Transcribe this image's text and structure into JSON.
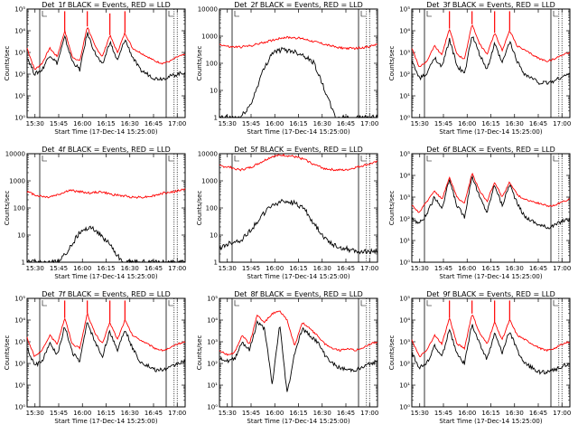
{
  "chart_data": [
    {
      "type": "line",
      "panel": "det-1f",
      "title": "Det_1f BLACK = Events, RED = LLD",
      "ylabel": "Counts/sec",
      "xlabel": "Start Time (17-Dec-14 15:25:00)",
      "xlabels": [
        "15:30",
        "15:45",
        "16:00",
        "16:15",
        "16:30",
        "16:45",
        "17:00"
      ],
      "yscale": "log",
      "ylim_exp": [
        0,
        5
      ],
      "ytick_style": "exp",
      "ytick_labels": [
        "10⁰",
        "10¹",
        "10²",
        "10³",
        "10⁴",
        "10⁵"
      ],
      "series": [
        {
          "color": "#ff0000",
          "values": [
            3.2,
            2.2,
            2.5,
            3.2,
            2.8,
            4.0,
            2.8,
            2.6,
            4.2,
            3.3,
            2.8,
            3.8,
            3.0,
            3.9,
            3.2,
            3.0,
            2.8,
            2.6,
            2.5,
            2.6,
            2.8,
            2.9
          ]
        },
        {
          "color": "#000000",
          "values": [
            2.8,
            2.0,
            2.2,
            2.9,
            2.5,
            3.7,
            2.6,
            2.2,
            3.9,
            3.0,
            2.4,
            3.5,
            2.6,
            3.6,
            2.8,
            2.2,
            2.0,
            1.8,
            1.8,
            1.9,
            2.0,
            2.1
          ]
        }
      ],
      "spikes_red": [
        5,
        8,
        11,
        13
      ],
      "vlines_solid": [
        0.08,
        0.88
      ],
      "vlines_dotted": [
        0.93,
        0.95
      ]
    },
    {
      "type": "line",
      "panel": "det-2f",
      "title": "Det_2f BLACK = Events, RED = LLD",
      "ylabel": "Counts/sec",
      "xlabel": "Start Time (17-Dec-14 15:25:00)",
      "xlabels": [
        "15:30",
        "15:45",
        "16:00",
        "16:15",
        "16:30",
        "16:45",
        "17:00"
      ],
      "yscale": "log",
      "ylim_exp": [
        0,
        4
      ],
      "ytick_style": "num",
      "ytick_labels": [
        "1",
        "10",
        "100",
        "1000",
        "10000"
      ],
      "series": [
        {
          "color": "#ff0000",
          "values": [
            2.7,
            2.6,
            2.6,
            2.65,
            2.75,
            2.85,
            2.95,
            2.95,
            2.9,
            2.8,
            2.7,
            2.6,
            2.55,
            2.55,
            2.6,
            2.7
          ]
        },
        {
          "color": "#000000",
          "values": [
            0,
            0,
            0,
            0.5,
            1.6,
            2.4,
            2.5,
            2.45,
            2.3,
            2.0,
            1.0,
            0,
            0,
            0,
            0,
            0
          ]
        }
      ],
      "vlines_solid": [
        0.08,
        0.88
      ],
      "vlines_dotted": [
        0.93,
        0.95
      ]
    },
    {
      "type": "line",
      "panel": "det-3f",
      "title": "Det_3f BLACK = Events, RED = LLD",
      "ylabel": "Counts/sec",
      "xlabel": "Start Time (17-Dec-14 15:25:00)",
      "xlabels": [
        "15:30",
        "15:45",
        "16:00",
        "16:15",
        "16:30",
        "16:45",
        "17:00"
      ],
      "yscale": "log",
      "ylim_exp": [
        0,
        5
      ],
      "ytick_style": "exp",
      "ytick_labels": [
        "10⁰",
        "10¹",
        "10²",
        "10³",
        "10⁴",
        "10⁵"
      ],
      "series": [
        {
          "color": "#ff0000",
          "values": [
            3.2,
            2.3,
            2.6,
            3.3,
            2.9,
            4.1,
            2.9,
            2.7,
            4.3,
            3.4,
            2.9,
            3.9,
            3.1,
            4.0,
            3.3,
            3.1,
            2.9,
            2.7,
            2.6,
            2.7,
            2.9,
            3.0
          ]
        },
        {
          "color": "#000000",
          "values": [
            2.6,
            1.8,
            2.0,
            2.8,
            2.3,
            3.6,
            2.4,
            2.0,
            3.8,
            2.9,
            2.2,
            3.4,
            2.5,
            3.5,
            2.6,
            2.0,
            1.8,
            1.6,
            1.6,
            1.7,
            1.9,
            2.0
          ]
        }
      ],
      "spikes_red": [
        5,
        8,
        11,
        13
      ],
      "vlines_solid": [
        0.08,
        0.88
      ],
      "vlines_dotted": [
        0.93,
        0.95
      ]
    },
    {
      "type": "line",
      "panel": "det-4f",
      "title": "Det_4f BLACK = Events, RED = LLD",
      "ylabel": "Counts/sec",
      "xlabel": "Start Time (17-Dec-14 15:25:00)",
      "xlabels": [
        "15:30",
        "15:45",
        "16:00",
        "16:15",
        "16:30",
        "16:45",
        "17:00"
      ],
      "yscale": "log",
      "ylim_exp": [
        0,
        4
      ],
      "ytick_style": "num",
      "ytick_labels": [
        "1",
        "10",
        "100",
        "1000",
        "10000"
      ],
      "series": [
        {
          "color": "#ff0000",
          "values": [
            2.6,
            2.45,
            2.4,
            2.5,
            2.65,
            2.6,
            2.55,
            2.6,
            2.5,
            2.45,
            2.4,
            2.4,
            2.45,
            2.55,
            2.6,
            2.7
          ]
        },
        {
          "color": "#000000",
          "values": [
            0,
            0,
            0,
            0,
            0.5,
            1.1,
            1.3,
            1.0,
            0.6,
            0,
            0,
            0,
            0,
            0,
            0,
            0
          ]
        }
      ],
      "vlines_solid": [
        0.08,
        0.88
      ],
      "vlines_dotted": [
        0.93,
        0.95
      ]
    },
    {
      "type": "line",
      "panel": "det-5f",
      "title": "Det_5f BLACK = Events, RED = LLD",
      "ylabel": "Counts/sec",
      "xlabel": "Start Time (17-Dec-14 15:25:00)",
      "xlabels": [
        "15:30",
        "15:45",
        "16:00",
        "16:15",
        "16:30",
        "16:45",
        "17:00"
      ],
      "yscale": "log",
      "ylim_exp": [
        0,
        4
      ],
      "ytick_style": "num",
      "ytick_labels": [
        "1",
        "10",
        "100",
        "1000",
        "10000"
      ],
      "series": [
        {
          "color": "#ff0000",
          "values": [
            3.55,
            3.5,
            3.4,
            3.5,
            3.7,
            3.9,
            3.95,
            3.9,
            3.8,
            3.6,
            3.45,
            3.4,
            3.4,
            3.5,
            3.6,
            3.7
          ]
        },
        {
          "color": "#000000",
          "values": [
            0.5,
            0.7,
            0.8,
            1.2,
            1.7,
            2.1,
            2.25,
            2.2,
            2.0,
            1.4,
            0.9,
            0.6,
            0.5,
            0.4,
            0.4,
            0.4
          ]
        }
      ],
      "vlines_solid": [
        0.08,
        0.88
      ],
      "vlines_dotted": [
        0.93,
        0.95
      ]
    },
    {
      "type": "line",
      "panel": "det-6f",
      "title": "Det_6f BLACK = Events, RED = LLD",
      "ylabel": "Counts/sec",
      "xlabel": "Start Time (17-Dec-14 15:25:00)",
      "xlabels": [
        "15:30",
        "15:45",
        "16:00",
        "16:15",
        "16:30",
        "16:45",
        "17:00"
      ],
      "yscale": "log",
      "ylim_exp": [
        0,
        5
      ],
      "ytick_style": "exp",
      "ytick_labels": [
        "10⁰",
        "10¹",
        "10²",
        "10³",
        "10⁴",
        "10⁵"
      ],
      "series": [
        {
          "color": "#ff0000",
          "values": [
            2.6,
            2.3,
            2.8,
            3.3,
            2.9,
            3.9,
            3.0,
            2.7,
            4.1,
            3.3,
            2.8,
            3.7,
            3.0,
            3.7,
            3.1,
            2.9,
            2.8,
            2.7,
            2.6,
            2.6,
            2.8,
            2.9
          ]
        },
        {
          "color": "#000000",
          "values": [
            2.0,
            1.8,
            2.2,
            3.0,
            2.5,
            3.8,
            2.6,
            2.1,
            4.0,
            3.0,
            2.3,
            3.6,
            2.6,
            3.6,
            2.7,
            2.1,
            1.9,
            1.7,
            1.6,
            1.7,
            1.9,
            2.0
          ]
        }
      ],
      "vlines_solid": [
        0.08,
        0.88
      ],
      "vlines_dotted": [
        0.93,
        0.95
      ]
    },
    {
      "type": "line",
      "panel": "det-7f",
      "title": "Det_7f BLACK = Events, RED = LLD",
      "ylabel": "Counts/sec",
      "xlabel": "Start Time (17-Dec-14 15:25:00)",
      "xlabels": [
        "15:30",
        "15:45",
        "16:00",
        "16:15",
        "16:30",
        "16:45",
        "17:00"
      ],
      "yscale": "log",
      "ylim_exp": [
        0,
        5
      ],
      "ytick_style": "exp",
      "ytick_labels": [
        "10⁰",
        "10¹",
        "10²",
        "10³",
        "10⁴",
        "10⁵"
      ],
      "series": [
        {
          "color": "#ff0000",
          "values": [
            3.2,
            2.3,
            2.6,
            3.3,
            2.9,
            4.1,
            2.9,
            2.7,
            4.3,
            3.4,
            2.9,
            3.9,
            3.1,
            4.0,
            3.3,
            3.1,
            2.9,
            2.7,
            2.6,
            2.7,
            2.9,
            3.0
          ]
        },
        {
          "color": "#000000",
          "values": [
            2.7,
            1.9,
            2.1,
            2.9,
            2.4,
            3.7,
            2.5,
            2.1,
            3.9,
            3.0,
            2.3,
            3.5,
            2.6,
            3.6,
            2.7,
            2.1,
            1.9,
            1.7,
            1.7,
            1.8,
            2.0,
            2.1
          ]
        }
      ],
      "spikes_red": [
        5,
        8,
        11,
        13
      ],
      "vlines_solid": [
        0.08,
        0.88
      ],
      "vlines_dotted": [
        0.93,
        0.95
      ]
    },
    {
      "type": "line",
      "panel": "det-8f",
      "title": "Det_8f BLACK = Events, RED = LLD",
      "ylabel": "Counts/sec",
      "xlabel": "Start Time (17-Dec-14 15:25:00)",
      "xlabels": [
        "15:30",
        "15:45",
        "16:00",
        "16:15",
        "16:30",
        "16:45",
        "17:00"
      ],
      "yscale": "log",
      "ylim_exp": [
        0,
        5
      ],
      "ytick_style": "exp",
      "ytick_labels": [
        "10⁰",
        "10¹",
        "10²",
        "10³",
        "10⁴",
        "10⁵"
      ],
      "series": [
        {
          "color": "#ff0000",
          "values": [
            2.6,
            2.4,
            2.5,
            3.3,
            2.9,
            4.2,
            3.9,
            4.3,
            4.4,
            4.0,
            2.8,
            3.9,
            3.6,
            3.3,
            2.9,
            2.7,
            2.6,
            2.7,
            2.6,
            2.7,
            2.9,
            3.0
          ]
        },
        {
          "color": "#000000",
          "values": [
            2.3,
            2.1,
            2.2,
            3.0,
            2.6,
            3.9,
            3.6,
            1.0,
            3.8,
            0.6,
            2.5,
            3.6,
            3.3,
            3.0,
            2.4,
            2.0,
            1.8,
            1.7,
            1.7,
            1.8,
            2.0,
            2.1
          ]
        }
      ],
      "vlines_solid": [
        0.08,
        0.88
      ],
      "vlines_dotted": [
        0.93,
        0.95
      ]
    },
    {
      "type": "line",
      "panel": "det-9f",
      "title": "Det_9f BLACK = Events, RED = LLD",
      "ylabel": "Counts/sec",
      "xlabel": "Start Time (17-Dec-14 15:25:00)",
      "xlabels": [
        "15:30",
        "15:45",
        "16:00",
        "16:15",
        "16:30",
        "16:45",
        "17:00"
      ],
      "yscale": "log",
      "ylim_exp": [
        0,
        5
      ],
      "ytick_style": "exp",
      "ytick_labels": [
        "10⁰",
        "10¹",
        "10²",
        "10³",
        "10⁴",
        "10⁵"
      ],
      "series": [
        {
          "color": "#ff0000",
          "values": [
            3.1,
            2.3,
            2.6,
            3.3,
            2.9,
            4.1,
            2.9,
            2.7,
            4.3,
            3.4,
            2.9,
            3.9,
            3.1,
            4.0,
            3.3,
            3.1,
            2.9,
            2.7,
            2.6,
            2.7,
            2.9,
            3.0
          ]
        },
        {
          "color": "#000000",
          "values": [
            2.5,
            1.8,
            2.0,
            2.8,
            2.3,
            3.6,
            2.4,
            2.0,
            3.8,
            2.9,
            2.2,
            3.4,
            2.5,
            3.5,
            2.6,
            2.0,
            1.8,
            1.6,
            1.6,
            1.7,
            1.9,
            2.0
          ]
        }
      ],
      "spikes_red": [
        5,
        8,
        11,
        13
      ],
      "vlines_solid": [
        0.08,
        0.88
      ],
      "vlines_dotted": [
        0.93,
        0.95
      ]
    }
  ]
}
